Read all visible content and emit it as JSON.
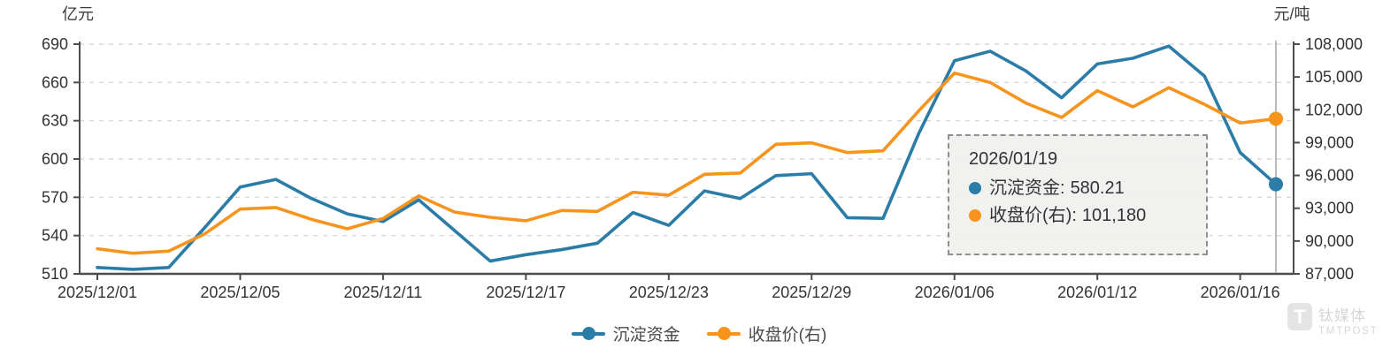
{
  "chart": {
    "left_axis_name": "亿元",
    "right_axis_name": "元/吨",
    "legend": [
      {
        "label": "沉淀资金",
        "color": "#2b7ca6"
      },
      {
        "label": "收盘价(右)",
        "color": "#f7941e"
      }
    ],
    "tooltip": {
      "date": "2026/01/19",
      "rows": [
        {
          "label": "沉淀资金:",
          "value": "580.21",
          "color": "#2b7ca6"
        },
        {
          "label": "收盘价(右):",
          "value": "101,180",
          "color": "#f7941e"
        }
      ]
    },
    "watermark": {
      "logo_letter": "T",
      "cn": "钛媒体",
      "en": "TMTPOST"
    }
  },
  "chart_data": {
    "type": "line",
    "title": "",
    "x": [
      "2025/12/01",
      "2025/12/02",
      "2025/12/03",
      "2025/12/04",
      "2025/12/05",
      "2025/12/08",
      "2025/12/09",
      "2025/12/10",
      "2025/12/11",
      "2025/12/12",
      "2025/12/15",
      "2025/12/16",
      "2025/12/17",
      "2025/12/18",
      "2025/12/19",
      "2025/12/22",
      "2025/12/23",
      "2025/12/24",
      "2025/12/25",
      "2025/12/26",
      "2025/12/29",
      "2025/12/30",
      "2025/12/31",
      "2026/01/05",
      "2026/01/06",
      "2026/01/07",
      "2026/01/08",
      "2026/01/09",
      "2026/01/12",
      "2026/01/13",
      "2026/01/14",
      "2026/01/15",
      "2026/01/16",
      "2026/01/19"
    ],
    "x_tick_indices": [
      0,
      4,
      8,
      12,
      16,
      20,
      24,
      28,
      32
    ],
    "series": [
      {
        "name": "沉淀资金",
        "axis": "left",
        "color": "#2b7ca6",
        "values": [
          515,
          513.5,
          515,
          546,
          578,
          584,
          569,
          557,
          551,
          568,
          544,
          520,
          525,
          529,
          534,
          558,
          548,
          575,
          569,
          587,
          588.5,
          554,
          553.5,
          620,
          677,
          684.5,
          669,
          648,
          674.5,
          679,
          688.5,
          665,
          605,
          580.21
        ]
      },
      {
        "name": "收盘价(右)",
        "axis": "right",
        "color": "#f7941e",
        "values": [
          89290,
          88880,
          89080,
          90640,
          92920,
          93060,
          91980,
          91120,
          92060,
          94130,
          92650,
          92170,
          91850,
          92790,
          92710,
          94460,
          94190,
          96100,
          96210,
          98850,
          98980,
          98090,
          98250,
          101900,
          105360,
          104500,
          102610,
          101300,
          103750,
          102270,
          104020,
          102500,
          100790,
          101180
        ]
      }
    ],
    "left_axis": {
      "name": "亿元",
      "min": 510,
      "max": 690,
      "step": 30
    },
    "right_axis": {
      "name": "元/吨",
      "min": 87000,
      "max": 108000,
      "step": 3000
    },
    "grid": true,
    "legend_position": "bottom",
    "highlight": {
      "index": 33,
      "date": "2026/01/19"
    },
    "colors": {
      "axis_line": "#4d4d4d",
      "grid_line": "#d9d9d9",
      "tick_text": "#333333",
      "crosshair": "#b9b9b9"
    }
  }
}
